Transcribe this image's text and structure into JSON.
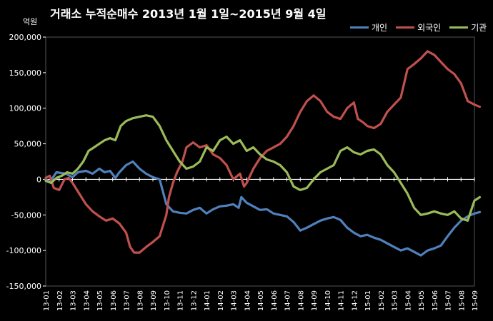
{
  "chart_data": {
    "type": "line",
    "title": "거래소 누적순매수 2013년 1월 1일~2015년 9월 4일",
    "ylabel": "억원",
    "ylim": [
      -150000,
      200000
    ],
    "yticks": [
      200000,
      150000,
      100000,
      50000,
      0,
      -50000,
      -100000,
      -150000
    ],
    "ytick_labels": [
      "200,000",
      "150,000",
      "100,000",
      "50,000",
      "0",
      "-50,000",
      "-100,000",
      "-150,000"
    ],
    "categories": [
      "13-01",
      "13-02",
      "13-03",
      "13-04",
      "13-05",
      "13-06",
      "13-07",
      "13-08",
      "13-09",
      "13-10",
      "13-11",
      "13-12",
      "14-01",
      "14-02",
      "14-03",
      "14-04",
      "14-05",
      "14-06",
      "14-07",
      "14-08",
      "14-09",
      "14-10",
      "14-11",
      "14-12",
      "15-01",
      "15-02",
      "15-03",
      "15-04",
      "15-05",
      "15-06",
      "15-07",
      "15-08",
      "15-09"
    ],
    "grid": false,
    "legend_position": "top-right",
    "series": [
      {
        "name": "개인",
        "color": "#4f81bd",
        "points": [
          [
            0,
            0
          ],
          [
            0.3,
            -4000
          ],
          [
            0.8,
            10000
          ],
          [
            1.5,
            8000
          ],
          [
            2,
            3000
          ],
          [
            2.4,
            10000
          ],
          [
            3,
            12000
          ],
          [
            3.5,
            8000
          ],
          [
            4,
            15000
          ],
          [
            4.4,
            10000
          ],
          [
            4.8,
            12000
          ],
          [
            5.2,
            2000
          ],
          [
            5.5,
            10000
          ],
          [
            6,
            20000
          ],
          [
            6.5,
            25000
          ],
          [
            7,
            15000
          ],
          [
            7.5,
            8000
          ],
          [
            8,
            3000
          ],
          [
            8.5,
            0
          ],
          [
            9,
            -35000
          ],
          [
            9.5,
            -45000
          ],
          [
            10,
            -47000
          ],
          [
            10.5,
            -48000
          ],
          [
            11,
            -43000
          ],
          [
            11.5,
            -40000
          ],
          [
            12,
            -48000
          ],
          [
            12.5,
            -42000
          ],
          [
            13,
            -38000
          ],
          [
            13.5,
            -37000
          ],
          [
            14,
            -35000
          ],
          [
            14.4,
            -40000
          ],
          [
            14.6,
            -25000
          ],
          [
            15,
            -33000
          ],
          [
            15.5,
            -38000
          ],
          [
            16,
            -43000
          ],
          [
            16.5,
            -42000
          ],
          [
            17,
            -48000
          ],
          [
            17.5,
            -50000
          ],
          [
            18,
            -52000
          ],
          [
            18.5,
            -60000
          ],
          [
            19,
            -72000
          ],
          [
            19.5,
            -68000
          ],
          [
            20,
            -63000
          ],
          [
            20.5,
            -58000
          ],
          [
            21,
            -55000
          ],
          [
            21.5,
            -53000
          ],
          [
            22,
            -57000
          ],
          [
            22.5,
            -68000
          ],
          [
            23,
            -75000
          ],
          [
            23.5,
            -80000
          ],
          [
            24,
            -78000
          ],
          [
            24.5,
            -82000
          ],
          [
            25,
            -85000
          ],
          [
            25.5,
            -90000
          ],
          [
            26,
            -95000
          ],
          [
            26.5,
            -100000
          ],
          [
            27,
            -97000
          ],
          [
            27.5,
            -102000
          ],
          [
            28,
            -107000
          ],
          [
            28.5,
            -100000
          ],
          [
            29,
            -97000
          ],
          [
            29.5,
            -93000
          ],
          [
            30,
            -80000
          ],
          [
            30.5,
            -68000
          ],
          [
            31,
            -58000
          ],
          [
            31.5,
            -52000
          ],
          [
            32,
            -48000
          ],
          [
            32.4,
            -46000
          ]
        ]
      },
      {
        "name": "외국인",
        "color": "#c0504d",
        "points": [
          [
            0,
            2000
          ],
          [
            0.3,
            5000
          ],
          [
            0.6,
            -12000
          ],
          [
            1,
            -15000
          ],
          [
            1.4,
            0
          ],
          [
            1.7,
            2000
          ],
          [
            2,
            -5000
          ],
          [
            2.5,
            -20000
          ],
          [
            3,
            -35000
          ],
          [
            3.5,
            -45000
          ],
          [
            4,
            -52000
          ],
          [
            4.5,
            -58000
          ],
          [
            5,
            -55000
          ],
          [
            5.5,
            -62000
          ],
          [
            6,
            -75000
          ],
          [
            6.3,
            -95000
          ],
          [
            6.6,
            -103000
          ],
          [
            7,
            -103000
          ],
          [
            7.5,
            -95000
          ],
          [
            8,
            -88000
          ],
          [
            8.5,
            -80000
          ],
          [
            9,
            -50000
          ],
          [
            9.2,
            -25000
          ],
          [
            9.5,
            -5000
          ],
          [
            9.8,
            10000
          ],
          [
            10.2,
            25000
          ],
          [
            10.5,
            45000
          ],
          [
            11,
            52000
          ],
          [
            11.5,
            45000
          ],
          [
            12,
            48000
          ],
          [
            12.5,
            35000
          ],
          [
            13,
            30000
          ],
          [
            13.5,
            20000
          ],
          [
            14,
            0
          ],
          [
            14.5,
            8000
          ],
          [
            14.8,
            -10000
          ],
          [
            15,
            -5000
          ],
          [
            15.5,
            15000
          ],
          [
            16,
            30000
          ],
          [
            16.5,
            40000
          ],
          [
            17,
            45000
          ],
          [
            17.5,
            50000
          ],
          [
            18,
            60000
          ],
          [
            18.5,
            75000
          ],
          [
            19,
            95000
          ],
          [
            19.5,
            110000
          ],
          [
            20,
            118000
          ],
          [
            20.5,
            110000
          ],
          [
            21,
            95000
          ],
          [
            21.5,
            88000
          ],
          [
            22,
            85000
          ],
          [
            22.5,
            100000
          ],
          [
            23,
            108000
          ],
          [
            23.3,
            85000
          ],
          [
            23.7,
            80000
          ],
          [
            24,
            75000
          ],
          [
            24.5,
            72000
          ],
          [
            25,
            78000
          ],
          [
            25.5,
            95000
          ],
          [
            26,
            105000
          ],
          [
            26.5,
            115000
          ],
          [
            27,
            155000
          ],
          [
            27.5,
            162000
          ],
          [
            28,
            170000
          ],
          [
            28.5,
            180000
          ],
          [
            29,
            175000
          ],
          [
            29.5,
            165000
          ],
          [
            30,
            155000
          ],
          [
            30.5,
            148000
          ],
          [
            31,
            135000
          ],
          [
            31.5,
            110000
          ],
          [
            32,
            105000
          ],
          [
            32.4,
            102000
          ]
        ]
      },
      {
        "name": "기관",
        "color": "#9bbb59",
        "points": [
          [
            0,
            -2000
          ],
          [
            0.4,
            -5000
          ],
          [
            0.8,
            2000
          ],
          [
            1.2,
            5000
          ],
          [
            1.6,
            10000
          ],
          [
            2,
            8000
          ],
          [
            2.4,
            15000
          ],
          [
            2.8,
            25000
          ],
          [
            3.2,
            40000
          ],
          [
            3.6,
            45000
          ],
          [
            4,
            50000
          ],
          [
            4.4,
            55000
          ],
          [
            4.8,
            58000
          ],
          [
            5.2,
            55000
          ],
          [
            5.6,
            75000
          ],
          [
            6,
            82000
          ],
          [
            6.5,
            86000
          ],
          [
            7,
            88000
          ],
          [
            7.5,
            90000
          ],
          [
            8,
            88000
          ],
          [
            8.5,
            75000
          ],
          [
            9,
            55000
          ],
          [
            9.5,
            40000
          ],
          [
            10,
            25000
          ],
          [
            10.5,
            15000
          ],
          [
            11,
            18000
          ],
          [
            11.5,
            25000
          ],
          [
            12,
            45000
          ],
          [
            12.5,
            40000
          ],
          [
            13,
            55000
          ],
          [
            13.5,
            60000
          ],
          [
            14,
            50000
          ],
          [
            14.5,
            55000
          ],
          [
            15,
            40000
          ],
          [
            15.5,
            45000
          ],
          [
            16,
            35000
          ],
          [
            16.5,
            28000
          ],
          [
            17,
            25000
          ],
          [
            17.5,
            20000
          ],
          [
            18,
            10000
          ],
          [
            18.5,
            -10000
          ],
          [
            19,
            -15000
          ],
          [
            19.5,
            -12000
          ],
          [
            20,
            0
          ],
          [
            20.5,
            10000
          ],
          [
            21,
            15000
          ],
          [
            21.5,
            20000
          ],
          [
            22,
            40000
          ],
          [
            22.5,
            45000
          ],
          [
            23,
            38000
          ],
          [
            23.5,
            35000
          ],
          [
            24,
            40000
          ],
          [
            24.5,
            42000
          ],
          [
            25,
            35000
          ],
          [
            25.5,
            20000
          ],
          [
            26,
            10000
          ],
          [
            26.5,
            -5000
          ],
          [
            27,
            -20000
          ],
          [
            27.5,
            -40000
          ],
          [
            28,
            -50000
          ],
          [
            28.5,
            -48000
          ],
          [
            29,
            -45000
          ],
          [
            29.5,
            -48000
          ],
          [
            30,
            -50000
          ],
          [
            30.5,
            -45000
          ],
          [
            31,
            -55000
          ],
          [
            31.5,
            -58000
          ],
          [
            32,
            -30000
          ],
          [
            32.4,
            -25000
          ]
        ]
      }
    ]
  }
}
